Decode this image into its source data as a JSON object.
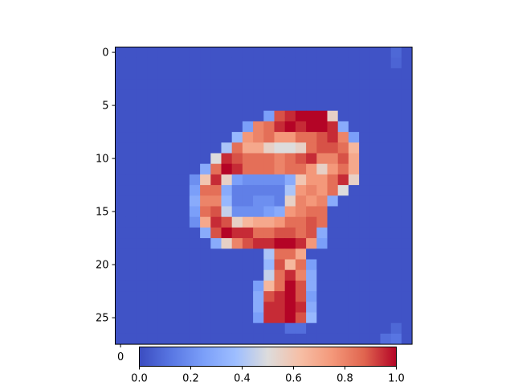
{
  "chart_data": {
    "type": "heatmap",
    "title": "",
    "xlabel": "",
    "ylabel": "",
    "rows": 28,
    "cols": 28,
    "colormap": "coolwarm",
    "background_value": 0.02,
    "y_ticks": [
      "0",
      "5",
      "10",
      "15",
      "20",
      "25"
    ],
    "x_ticks": [
      "0"
    ],
    "colorbar": {
      "orientation": "horizontal",
      "vmin": 0.0,
      "vmax": 1.0,
      "ticks": [
        "0.0",
        "0.2",
        "0.4",
        "0.6",
        "0.8",
        "1.0"
      ]
    },
    "cells": [
      [
        6,
        14,
        0.25
      ],
      [
        6,
        15,
        0.9
      ],
      [
        6,
        16,
        0.95
      ],
      [
        6,
        17,
        1.0
      ],
      [
        6,
        18,
        1.0
      ],
      [
        6,
        19,
        1.0
      ],
      [
        6,
        20,
        0.55
      ],
      [
        7,
        12,
        0.25
      ],
      [
        7,
        13,
        0.8
      ],
      [
        7,
        14,
        0.85
      ],
      [
        7,
        15,
        0.95
      ],
      [
        7,
        16,
        1.0
      ],
      [
        7,
        17,
        0.95
      ],
      [
        7,
        18,
        1.0
      ],
      [
        7,
        19,
        1.0
      ],
      [
        7,
        20,
        0.95
      ],
      [
        7,
        21,
        0.3
      ],
      [
        8,
        11,
        0.35
      ],
      [
        8,
        12,
        0.75
      ],
      [
        8,
        13,
        0.8
      ],
      [
        8,
        14,
        0.85
      ],
      [
        8,
        15,
        0.75
      ],
      [
        8,
        16,
        0.75
      ],
      [
        8,
        17,
        0.85
      ],
      [
        8,
        18,
        0.85
      ],
      [
        8,
        19,
        0.9
      ],
      [
        8,
        20,
        0.95
      ],
      [
        8,
        21,
        0.8
      ],
      [
        8,
        22,
        0.25
      ],
      [
        9,
        10,
        0.4
      ],
      [
        9,
        11,
        0.85
      ],
      [
        9,
        12,
        0.7
      ],
      [
        9,
        13,
        0.7
      ],
      [
        9,
        14,
        0.55
      ],
      [
        9,
        15,
        0.5
      ],
      [
        9,
        16,
        0.5
      ],
      [
        9,
        17,
        0.55
      ],
      [
        9,
        18,
        0.85
      ],
      [
        9,
        19,
        0.9
      ],
      [
        9,
        20,
        0.9
      ],
      [
        9,
        21,
        0.85
      ],
      [
        9,
        22,
        0.65
      ],
      [
        10,
        9,
        0.5
      ],
      [
        10,
        10,
        0.95
      ],
      [
        10,
        11,
        0.9
      ],
      [
        10,
        12,
        0.85
      ],
      [
        10,
        13,
        0.85
      ],
      [
        10,
        14,
        0.85
      ],
      [
        10,
        15,
        0.8
      ],
      [
        10,
        16,
        0.85
      ],
      [
        10,
        17,
        0.9
      ],
      [
        10,
        18,
        0.95
      ],
      [
        10,
        19,
        0.8
      ],
      [
        10,
        20,
        0.8
      ],
      [
        10,
        21,
        0.9
      ],
      [
        10,
        22,
        0.7
      ],
      [
        11,
        8,
        0.3
      ],
      [
        11,
        9,
        0.85
      ],
      [
        11,
        10,
        1.0
      ],
      [
        11,
        11,
        0.95
      ],
      [
        11,
        12,
        0.85
      ],
      [
        11,
        13,
        0.85
      ],
      [
        11,
        14,
        0.85
      ],
      [
        11,
        15,
        0.8
      ],
      [
        11,
        16,
        0.85
      ],
      [
        11,
        17,
        0.85
      ],
      [
        11,
        18,
        0.75
      ],
      [
        11,
        19,
        0.55
      ],
      [
        11,
        20,
        0.75
      ],
      [
        11,
        21,
        0.85
      ],
      [
        11,
        22,
        0.7
      ],
      [
        12,
        7,
        0.2
      ],
      [
        12,
        8,
        0.6
      ],
      [
        12,
        9,
        0.95
      ],
      [
        12,
        10,
        0.55
      ],
      [
        12,
        11,
        0.25
      ],
      [
        12,
        12,
        0.2
      ],
      [
        12,
        13,
        0.2
      ],
      [
        12,
        14,
        0.2
      ],
      [
        12,
        15,
        0.2
      ],
      [
        12,
        16,
        0.3
      ],
      [
        12,
        17,
        0.6
      ],
      [
        12,
        18,
        0.75
      ],
      [
        12,
        19,
        0.75
      ],
      [
        12,
        20,
        0.85
      ],
      [
        12,
        21,
        0.95
      ],
      [
        12,
        22,
        0.55
      ],
      [
        13,
        7,
        0.25
      ],
      [
        13,
        8,
        0.85
      ],
      [
        13,
        9,
        0.85
      ],
      [
        13,
        10,
        0.3
      ],
      [
        13,
        11,
        0.15
      ],
      [
        13,
        12,
        0.15
      ],
      [
        13,
        13,
        0.15
      ],
      [
        13,
        14,
        0.15
      ],
      [
        13,
        15,
        0.15
      ],
      [
        13,
        16,
        0.4
      ],
      [
        13,
        17,
        0.75
      ],
      [
        13,
        18,
        0.8
      ],
      [
        13,
        19,
        0.75
      ],
      [
        13,
        20,
        0.85
      ],
      [
        13,
        21,
        0.5
      ],
      [
        14,
        7,
        0.3
      ],
      [
        14,
        8,
        0.8
      ],
      [
        14,
        9,
        0.8
      ],
      [
        14,
        10,
        0.35
      ],
      [
        14,
        11,
        0.15
      ],
      [
        14,
        12,
        0.15
      ],
      [
        14,
        13,
        0.2
      ],
      [
        14,
        14,
        0.2
      ],
      [
        14,
        15,
        0.15
      ],
      [
        14,
        16,
        0.55
      ],
      [
        14,
        17,
        0.8
      ],
      [
        14,
        18,
        0.75
      ],
      [
        14,
        19,
        0.8
      ],
      [
        14,
        20,
        0.3
      ],
      [
        15,
        7,
        0.25
      ],
      [
        15,
        8,
        0.85
      ],
      [
        15,
        9,
        0.9
      ],
      [
        15,
        10,
        0.45
      ],
      [
        15,
        11,
        0.2
      ],
      [
        15,
        12,
        0.2
      ],
      [
        15,
        13,
        0.2
      ],
      [
        15,
        14,
        0.25
      ],
      [
        15,
        15,
        0.3
      ],
      [
        15,
        16,
        0.75
      ],
      [
        15,
        17,
        0.8
      ],
      [
        15,
        18,
        0.85
      ],
      [
        15,
        19,
        0.85
      ],
      [
        16,
        7,
        0.2
      ],
      [
        16,
        8,
        0.7
      ],
      [
        16,
        9,
        0.95
      ],
      [
        16,
        10,
        0.9
      ],
      [
        16,
        11,
        0.55
      ],
      [
        16,
        12,
        0.65
      ],
      [
        16,
        13,
        0.7
      ],
      [
        16,
        14,
        0.7
      ],
      [
        16,
        15,
        0.75
      ],
      [
        16,
        16,
        0.85
      ],
      [
        16,
        17,
        0.85
      ],
      [
        16,
        18,
        0.9
      ],
      [
        16,
        19,
        0.85
      ],
      [
        17,
        8,
        0.3
      ],
      [
        17,
        9,
        0.9
      ],
      [
        17,
        10,
        1.0
      ],
      [
        17,
        11,
        0.95
      ],
      [
        17,
        12,
        0.95
      ],
      [
        17,
        13,
        0.85
      ],
      [
        17,
        14,
        0.85
      ],
      [
        17,
        15,
        0.9
      ],
      [
        17,
        16,
        0.9
      ],
      [
        17,
        17,
        0.85
      ],
      [
        17,
        18,
        0.9
      ],
      [
        17,
        19,
        0.3
      ],
      [
        18,
        9,
        0.3
      ],
      [
        18,
        10,
        0.55
      ],
      [
        18,
        11,
        0.8
      ],
      [
        18,
        12,
        0.9
      ],
      [
        18,
        13,
        0.95
      ],
      [
        18,
        14,
        0.95
      ],
      [
        18,
        15,
        1.0
      ],
      [
        18,
        16,
        1.0
      ],
      [
        18,
        17,
        0.95
      ],
      [
        18,
        18,
        0.75
      ],
      [
        18,
        19,
        0.25
      ],
      [
        19,
        14,
        0.4
      ],
      [
        19,
        15,
        0.85
      ],
      [
        19,
        16,
        0.85
      ],
      [
        19,
        17,
        0.7
      ],
      [
        20,
        14,
        0.35
      ],
      [
        20,
        15,
        0.9
      ],
      [
        20,
        16,
        0.65
      ],
      [
        20,
        17,
        0.85
      ],
      [
        20,
        18,
        0.25
      ],
      [
        21,
        14,
        0.45
      ],
      [
        21,
        15,
        0.85
      ],
      [
        21,
        16,
        0.95
      ],
      [
        21,
        17,
        0.8
      ],
      [
        21,
        18,
        0.3
      ],
      [
        22,
        13,
        0.25
      ],
      [
        22,
        14,
        0.65
      ],
      [
        22,
        15,
        0.85
      ],
      [
        22,
        16,
        1.0
      ],
      [
        22,
        17,
        0.9
      ],
      [
        22,
        18,
        0.3
      ],
      [
        23,
        13,
        0.3
      ],
      [
        23,
        14,
        0.9
      ],
      [
        23,
        15,
        0.95
      ],
      [
        23,
        16,
        1.0
      ],
      [
        23,
        17,
        0.9
      ],
      [
        23,
        18,
        0.25
      ],
      [
        24,
        13,
        0.3
      ],
      [
        24,
        14,
        0.95
      ],
      [
        24,
        15,
        0.95
      ],
      [
        24,
        16,
        1.0
      ],
      [
        24,
        17,
        0.95
      ],
      [
        24,
        18,
        0.3
      ],
      [
        25,
        13,
        0.25
      ],
      [
        25,
        14,
        0.95
      ],
      [
        25,
        15,
        0.95
      ],
      [
        25,
        16,
        1.0
      ],
      [
        25,
        17,
        0.9
      ],
      [
        25,
        18,
        0.35
      ],
      [
        26,
        16,
        0.1
      ],
      [
        26,
        17,
        0.1
      ],
      [
        0,
        26,
        0.08
      ],
      [
        1,
        26,
        0.07
      ],
      [
        27,
        25,
        0.1
      ],
      [
        27,
        26,
        0.12
      ],
      [
        26,
        26,
        0.08
      ]
    ]
  }
}
